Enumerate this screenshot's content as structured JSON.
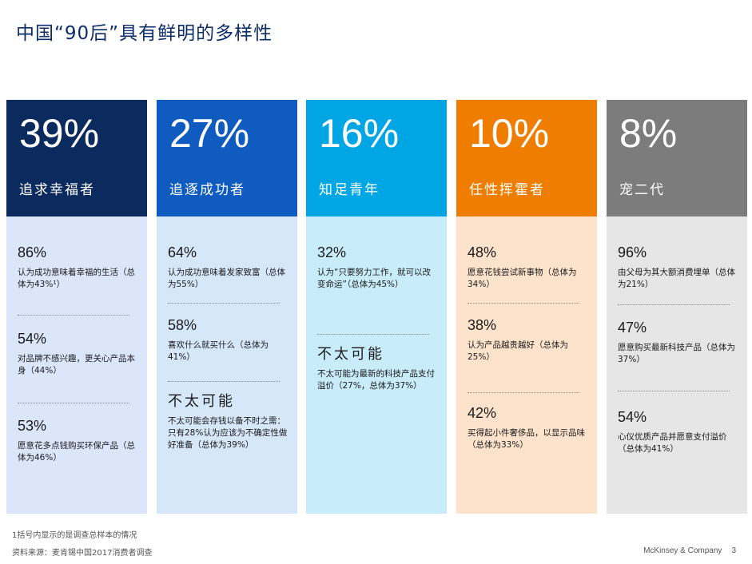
{
  "title": "中国“90后”具有鲜明的多样性",
  "columns": [
    {
      "percent": "39%",
      "name": "追求幸福者",
      "head_color": "#0b2a5e",
      "body_color": "#dce6fb",
      "stats": [
        {
          "value": "86%",
          "desc": "认为成功意味着幸福的生活（总体为43%¹）"
        },
        {
          "value": "54%",
          "desc": "对品牌不感兴趣，更关心产品本身（44%）"
        },
        {
          "value": "53%",
          "desc": "愿意花多点钱购买环保产品（总体为46%）"
        }
      ]
    },
    {
      "percent": "27%",
      "name": "追逐成功者",
      "head_color": "#0f5bbf",
      "body_color": "#d6e7fa",
      "stats": [
        {
          "value": "64%",
          "desc": "认为成功意味着发家致富（总体为55%）"
        },
        {
          "value": "58%",
          "desc": "喜欢什么就买什么（总体为41%）"
        },
        {
          "value": "不太可能",
          "desc": "不太可能会存钱以备不时之需：只有28%认为应该为不确定性做好准备（总体为39%）"
        }
      ]
    },
    {
      "percent": "16%",
      "name": "知足青年",
      "head_color": "#00a6e4",
      "body_color": "#c9ecfa",
      "stats": [
        {
          "value": "32%",
          "desc": "认为“只要努力工作，就可以改变命运”（总体为45%）"
        },
        {
          "value": "不太可能",
          "desc": "不太可能为最新的科技产品支付溢价（27%，总体为37%）"
        }
      ]
    },
    {
      "percent": "10%",
      "name": "任性挥霍者",
      "head_color": "#ef7d00",
      "body_color": "#fde3cc",
      "stats": [
        {
          "value": "48%",
          "desc": "愿意花钱尝试新事物（总体为34%）"
        },
        {
          "value": "38%",
          "desc": "认为产品越贵越好（总体为25%）"
        },
        {
          "value": "42%",
          "desc": "买得起小件奢侈品，以显示品味（总体为33%）"
        }
      ]
    },
    {
      "percent": "8%",
      "name": "宠二代",
      "head_color": "#7c7c7c",
      "body_color": "#e6e6e6",
      "stats": [
        {
          "value": "96%",
          "desc": "由父母为其大额消费埋单（总体为21%）"
        },
        {
          "value": "47%",
          "desc": "愿意购买最新科技产品（总体为37%）"
        },
        {
          "value": "54%",
          "desc": "心仪优质产品并愿意支付溢价（总体为41%）"
        }
      ]
    }
  ],
  "footnote_1": "1括号内显示的是调查总样本的情况",
  "footnote_2": "资料来源：麦肯锡中国2017消费者调查",
  "brand": "McKinsey & Company",
  "page_number": "3"
}
